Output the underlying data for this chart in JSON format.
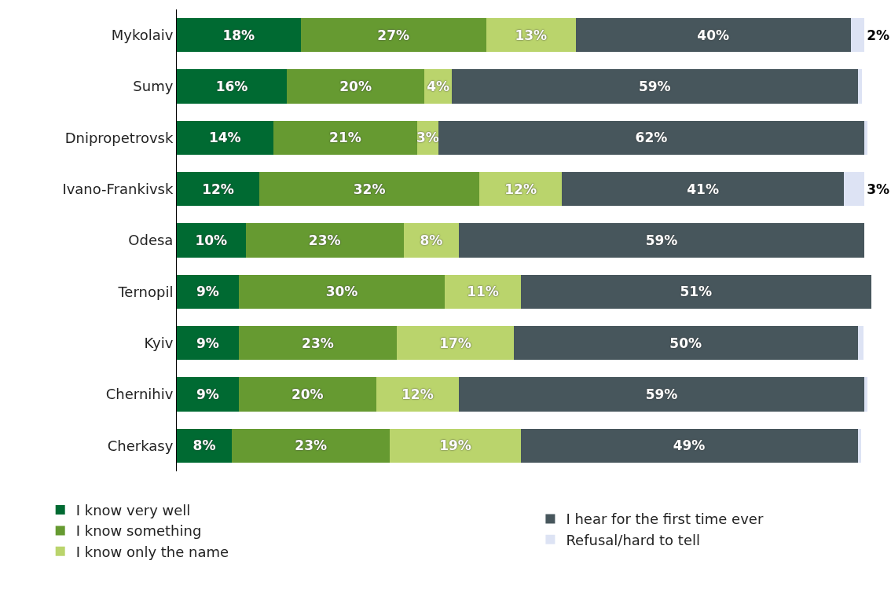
{
  "chart_data": {
    "type": "bar",
    "orientation": "horizontal",
    "stacked": true,
    "legend": "bottom",
    "categories": [
      "Mykolaiv",
      "Sumy",
      "Dnipropetrovsk",
      "Ivano-Frankivsk",
      "Odesa",
      "Ternopil",
      "Kyiv",
      "Chernihiv",
      "Cherkasy"
    ],
    "series": [
      {
        "name": "I know very well",
        "color": "#006a32",
        "values": [
          18,
          16,
          14,
          12,
          10,
          9,
          9,
          9,
          8
        ],
        "value_labels": [
          "18%",
          "16%",
          "14%",
          "12%",
          "10%",
          "9%",
          "9%",
          "9%",
          "8%"
        ]
      },
      {
        "name": "I know something",
        "color": "#669a31",
        "values": [
          27,
          20,
          21,
          32,
          23,
          30,
          23,
          20,
          23
        ],
        "value_labels": [
          "27%",
          "20%",
          "21%",
          "32%",
          "23%",
          "30%",
          "23%",
          "20%",
          "23%"
        ]
      },
      {
        "name": "I know only the name",
        "color": "#bad46c",
        "values": [
          13,
          4,
          3,
          12,
          8,
          11,
          17,
          12,
          19
        ],
        "value_labels": [
          "13%",
          "4%",
          "3%",
          "12%",
          "8%",
          "11%",
          "17%",
          "12%",
          "19%"
        ]
      },
      {
        "name": "I hear for the first time ever",
        "color": "#47565c",
        "values": [
          40,
          59,
          62,
          41,
          59,
          51,
          50,
          59,
          49
        ],
        "value_labels": [
          "40%",
          "59%",
          "62%",
          "41%",
          "59%",
          "51%",
          "50%",
          "59%",
          "49%"
        ]
      },
      {
        "name": "Refusal/hard to tell",
        "color": "#dde3f4",
        "values": [
          2,
          0.6,
          0.4,
          3,
          null,
          null,
          0.8,
          0.4,
          0.5
        ],
        "value_labels": [
          "2%",
          null,
          null,
          "3%",
          null,
          null,
          null,
          null,
          null
        ]
      }
    ]
  }
}
